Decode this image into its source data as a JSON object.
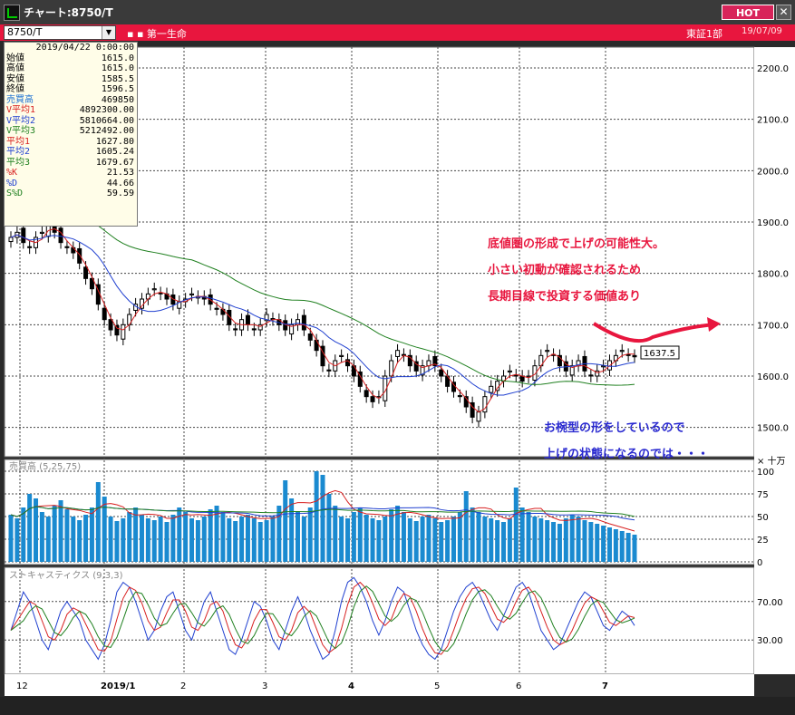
{
  "window": {
    "title": "チャート:8750/T",
    "hot_label": "HOT",
    "close_label": "✕"
  },
  "symbol_bar": {
    "code": "8750/T",
    "company": "第一生命",
    "market": "東証1部",
    "date": "19/07/09"
  },
  "info": [
    {
      "label": "",
      "value": "2019/04/22 0:00:00",
      "color": "#000000"
    },
    {
      "label": "始値",
      "value": "1615.0",
      "color": "#000000"
    },
    {
      "label": "高値",
      "value": "1615.0",
      "color": "#000000"
    },
    {
      "label": "安値",
      "value": "1585.5",
      "color": "#000000"
    },
    {
      "label": "終値",
      "value": "1596.5",
      "color": "#000000"
    },
    {
      "label": "売買高",
      "value": "469850",
      "color": "#1a6fd1"
    },
    {
      "label": "V平均1",
      "value": "4892300.00",
      "color": "#d82020"
    },
    {
      "label": "V平均2",
      "value": "5810664.00",
      "color": "#2040d0"
    },
    {
      "label": "V平均3",
      "value": "5212492.00",
      "color": "#208020"
    },
    {
      "label": "平均1",
      "value": "1627.80",
      "color": "#d82020"
    },
    {
      "label": "平均2",
      "value": "1605.24",
      "color": "#2040d0"
    },
    {
      "label": "平均3",
      "value": "1679.67",
      "color": "#208020"
    },
    {
      "label": "%K",
      "value": "21.53",
      "color": "#d82020"
    },
    {
      "label": "%D",
      "value": "44.66",
      "color": "#2040d0"
    },
    {
      "label": "S%D",
      "value": "59.59",
      "color": "#208020"
    }
  ],
  "price_axis": [
    "2200.0",
    "2100.0",
    "2000.0",
    "1900.0",
    "1800.0",
    "1700.0",
    "1600.0",
    "1500.0"
  ],
  "volume_axis": [
    "100",
    "75",
    "50",
    "25",
    "0"
  ],
  "volume_unit": "× 十万",
  "volume_label": "売買高 (5,25,75)",
  "stoch_axis": [
    "70.00",
    "30.00"
  ],
  "stoch_label": "ストキャスティクス (9,3,3)",
  "x_labels": [
    "12",
    "2019/1",
    "2",
    "3",
    "4",
    "5",
    "6",
    "7"
  ],
  "price_badge": "1637.5",
  "annotations": {
    "red": [
      "底値圏の形成で上げの可能性大。",
      "小さい初動が確認されるため",
      "長期目線で投資する価値あり"
    ],
    "blue": [
      "お椀型の形をしているので",
      "上げの状態になるのでは・・・"
    ]
  },
  "chart_data": {
    "type": "candlestick",
    "price_range": [
      1450,
      2230
    ],
    "series": [
      {
        "name": "平均1",
        "color": "#d82020"
      },
      {
        "name": "平均2",
        "color": "#2040d0"
      },
      {
        "name": "平均3",
        "color": "#208020"
      }
    ],
    "closes": [
      1870,
      1880,
      1860,
      1850,
      1870,
      1880,
      1900,
      1880,
      1860,
      1850,
      1840,
      1820,
      1790,
      1770,
      1740,
      1710,
      1690,
      1680,
      1700,
      1720,
      1740,
      1750,
      1760,
      1770,
      1760,
      1750,
      1740,
      1745,
      1750,
      1760,
      1755,
      1750,
      1740,
      1730,
      1720,
      1700,
      1690,
      1710,
      1700,
      1690,
      1700,
      1720,
      1710,
      1700,
      1690,
      1700,
      1710,
      1690,
      1670,
      1650,
      1620,
      1610,
      1630,
      1640,
      1620,
      1600,
      1580,
      1560,
      1550,
      1560,
      1600,
      1630,
      1650,
      1640,
      1620,
      1610,
      1620,
      1630,
      1620,
      1600,
      1580,
      1570,
      1560,
      1540,
      1520,
      1530,
      1560,
      1580,
      1590,
      1600,
      1610,
      1600,
      1590,
      1600,
      1620,
      1640,
      1650,
      1640,
      1620,
      1610,
      1620,
      1630,
      1610,
      1600,
      1610,
      1620,
      1630,
      1640,
      1650,
      1640,
      1637.5
    ],
    "volumes": [
      52,
      48,
      60,
      75,
      70,
      55,
      50,
      62,
      68,
      58,
      50,
      46,
      52,
      60,
      88,
      72,
      50,
      45,
      48,
      55,
      60,
      52,
      48,
      46,
      50,
      44,
      52,
      60,
      55,
      48,
      46,
      50,
      58,
      62,
      55,
      48,
      45,
      50,
      52,
      48,
      44,
      46,
      50,
      62,
      90,
      70,
      55,
      50,
      60,
      100,
      96,
      75,
      62,
      50,
      48,
      55,
      60,
      52,
      48,
      46,
      50,
      58,
      62,
      55,
      48,
      45,
      50,
      52,
      48,
      44,
      46,
      50,
      55,
      78,
      60,
      55,
      50,
      48,
      46,
      44,
      48,
      82,
      60,
      55,
      50,
      48,
      46,
      44,
      42,
      48,
      52,
      50,
      46,
      44,
      42,
      40,
      38,
      36,
      34,
      32,
      30
    ],
    "stoch_k": [
      40,
      60,
      80,
      70,
      50,
      30,
      20,
      40,
      60,
      70,
      60,
      50,
      30,
      20,
      10,
      25,
      50,
      80,
      90,
      85,
      70,
      50,
      30,
      40,
      60,
      75,
      80,
      60,
      40,
      30,
      50,
      70,
      80,
      60,
      40,
      20,
      15,
      30,
      50,
      70,
      65,
      50,
      30,
      20,
      40,
      60,
      75,
      60,
      40,
      25,
      10,
      15,
      40,
      70,
      90,
      95,
      85,
      70,
      50,
      35,
      50,
      70,
      85,
      80,
      60,
      40,
      25,
      15,
      10,
      20,
      40,
      60,
      75,
      85,
      90,
      80,
      65,
      50,
      40,
      55,
      70,
      85,
      90,
      80,
      60,
      40,
      30,
      20,
      25,
      40,
      55,
      70,
      80,
      75,
      60,
      45,
      40,
      50,
      60,
      55,
      45
    ]
  }
}
